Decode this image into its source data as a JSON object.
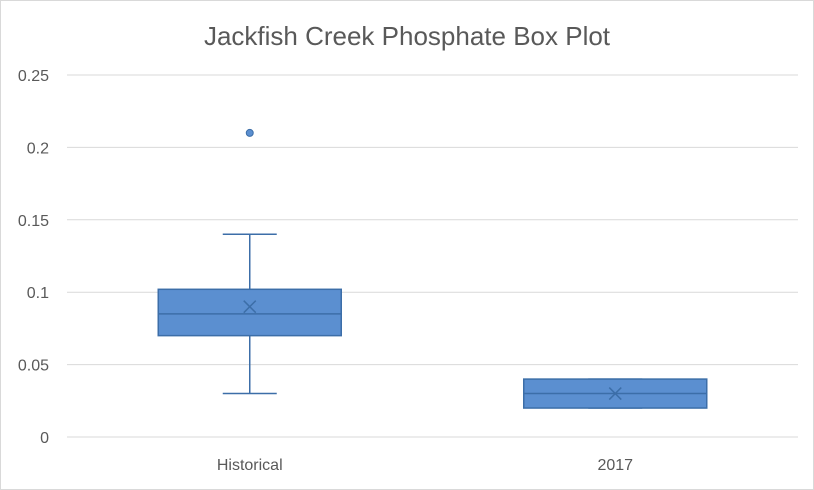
{
  "chart_data": {
    "type": "box",
    "title": "Jackfish Creek Phosphate Box Plot",
    "xlabel": "",
    "ylabel": "",
    "ylim": [
      0,
      0.25
    ],
    "y_ticks": [
      "0",
      "0.05",
      "0.1",
      "0.15",
      "0.2",
      "0.25"
    ],
    "y_tick_values": [
      0,
      0.05,
      0.1,
      0.15,
      0.2,
      0.25
    ],
    "grid": true,
    "legend": "none",
    "colors": {
      "box_fill": "#5b8fd0",
      "box_stroke": "#3c6ea8",
      "grid": "#d9d9d9",
      "text": "#595959"
    },
    "categories": [
      "Historical",
      "2017"
    ],
    "boxes": [
      {
        "category": "Historical",
        "min": 0.03,
        "q1": 0.07,
        "median": 0.085,
        "q3": 0.102,
        "max": 0.14,
        "mean": 0.09,
        "outliers": [
          0.21
        ]
      },
      {
        "category": "2017",
        "min": 0.02,
        "q1": 0.02,
        "median": 0.03,
        "q3": 0.04,
        "max": 0.04,
        "mean": 0.03,
        "outliers": []
      }
    ]
  }
}
